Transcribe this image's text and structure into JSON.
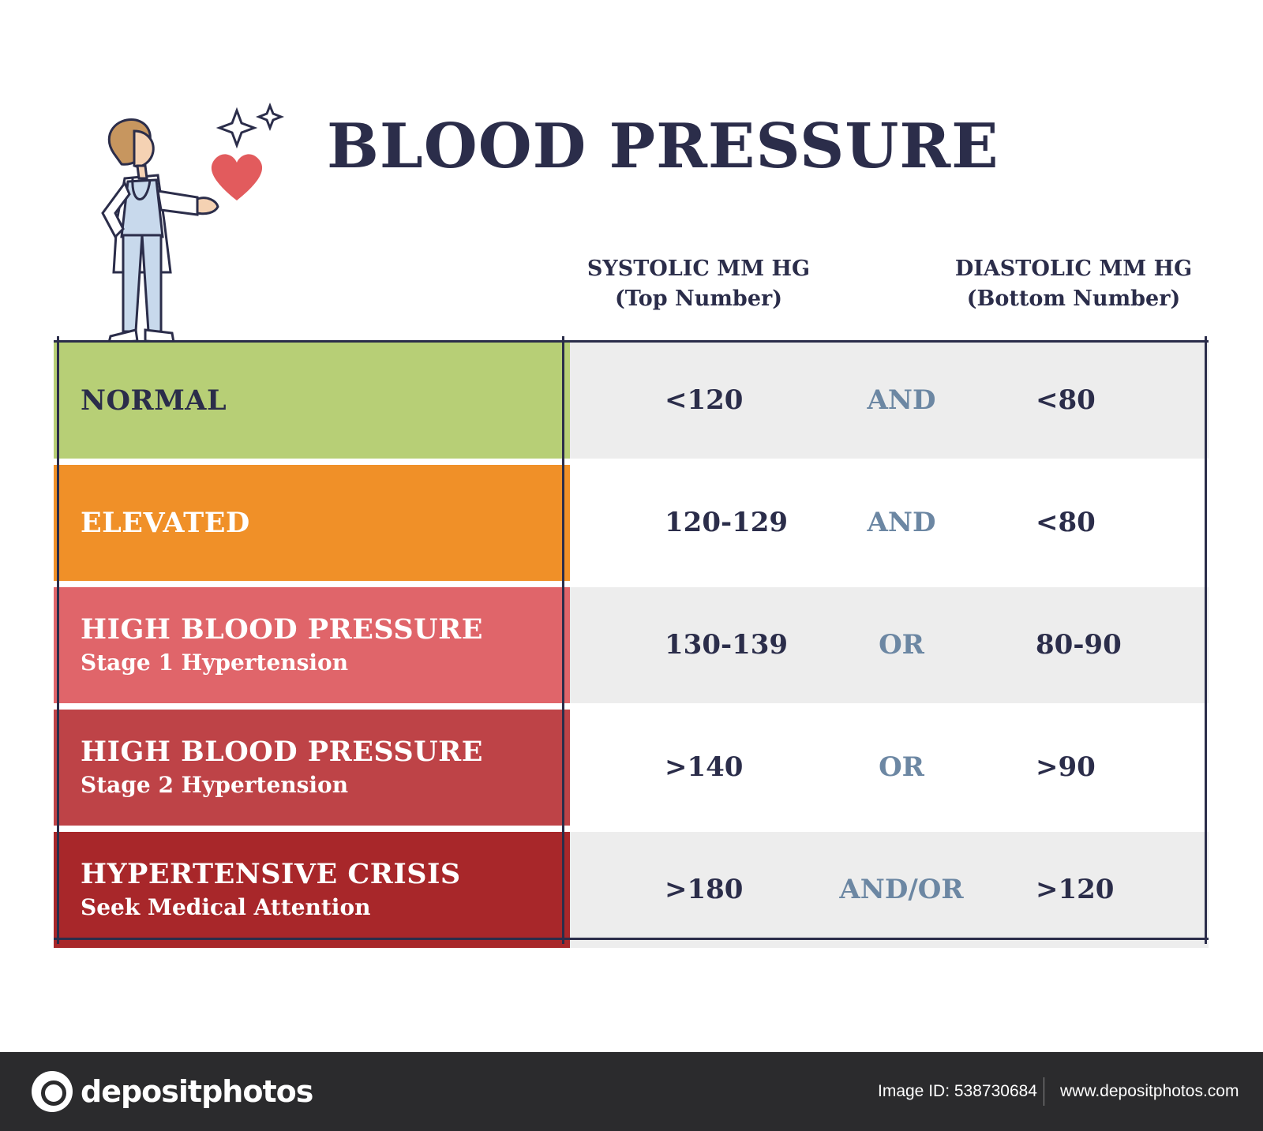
{
  "title": "BLOOD PRESSURE",
  "columns": {
    "systolic": {
      "label": "SYSTOLIC MM HG",
      "sub": "(Top Number)"
    },
    "diastolic": {
      "label": "DIASTOLIC MM HG",
      "sub": "(Bottom Number)"
    }
  },
  "rows": [
    {
      "category": "NORMAL",
      "note": "",
      "systolic": "<120",
      "operator": "AND",
      "diastolic": "<80",
      "color": "#b7cf76",
      "text_color": "#2b2d4a"
    },
    {
      "category": "ELEVATED",
      "note": "",
      "systolic": "120-129",
      "operator": "AND",
      "diastolic": "<80",
      "color": "#f09028",
      "text_color": "#ffffff"
    },
    {
      "category": "HIGH BLOOD PRESSURE",
      "note": "Stage 1 Hypertension",
      "systolic": "130-139",
      "operator": "OR",
      "diastolic": "80-90",
      "color": "#e0656a",
      "text_color": "#ffffff"
    },
    {
      "category": "HIGH BLOOD PRESSURE",
      "note": "Stage 2 Hypertension",
      "systolic": ">140",
      "operator": "OR",
      "diastolic": ">90",
      "color": "#be4347",
      "text_color": "#ffffff"
    },
    {
      "category": "HYPERTENSIVE CRISIS",
      "note": "Seek Medical Attention",
      "systolic": ">180",
      "operator": "AND/OR",
      "diastolic": ">120",
      "color": "#a8272a",
      "text_color": "#ffffff"
    }
  ],
  "stripe_colors": [
    "#ededed",
    "#ffffff"
  ],
  "illustration": {
    "figure": "doctor-illustration",
    "heart_color": "#e25b5d"
  },
  "footer": {
    "logo": "depositphotos",
    "image_id": "Image ID: 538730684",
    "site": "www.depositphotos.com"
  }
}
